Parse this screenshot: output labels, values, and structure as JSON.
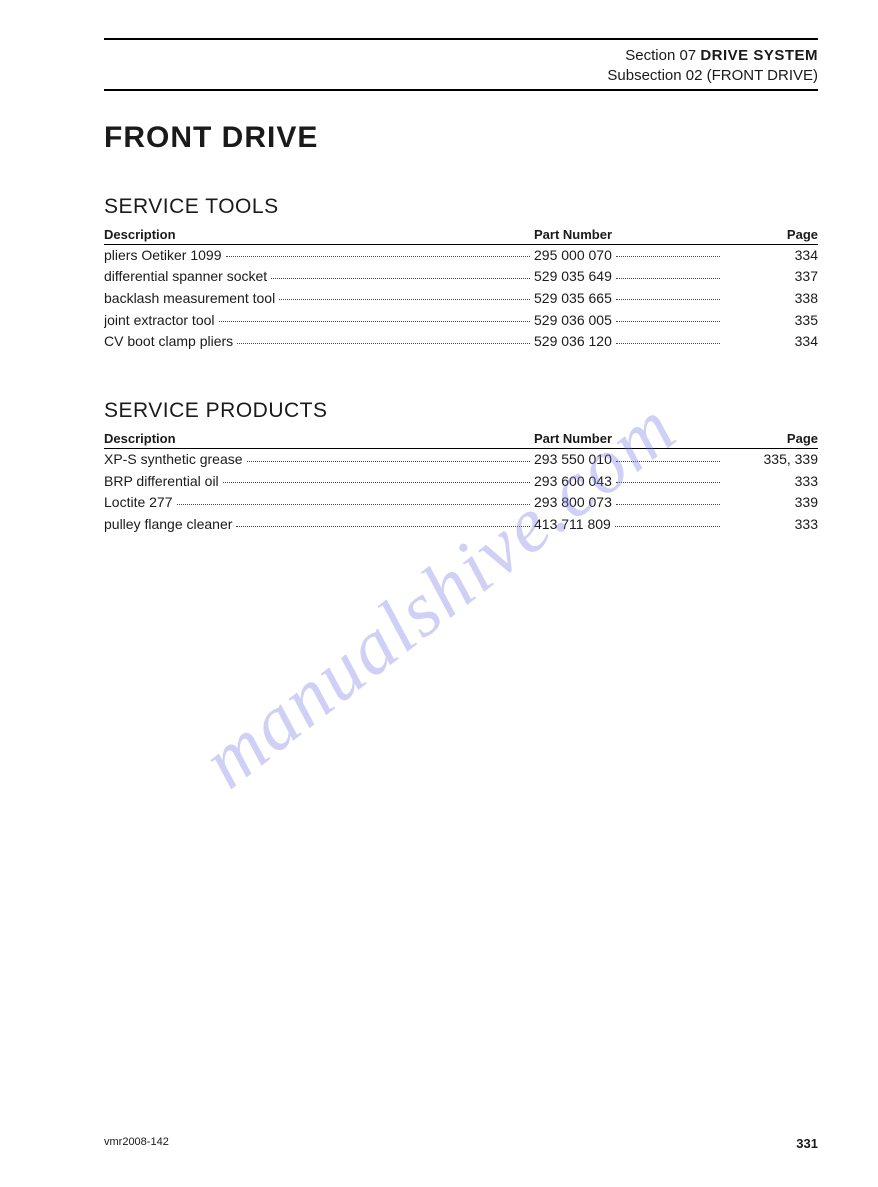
{
  "header": {
    "section_label": "Section 07",
    "section_title": "DRIVE SYSTEM",
    "subsection": "Subsection 02 (FRONT DRIVE)"
  },
  "title": "FRONT DRIVE",
  "tools": {
    "heading": "SERVICE TOOLS",
    "col_desc": "Description",
    "col_part": "Part Number",
    "col_page": "Page",
    "rows": [
      {
        "desc": "pliers Oetiker 1099",
        "part": "295 000 070",
        "page": "334"
      },
      {
        "desc": "differential spanner socket",
        "part": "529 035 649",
        "page": "337"
      },
      {
        "desc": "backlash measurement tool",
        "part": "529 035 665",
        "page": "338"
      },
      {
        "desc": "joint extractor tool",
        "part": "529 036 005",
        "page": "335"
      },
      {
        "desc": "CV boot clamp pliers",
        "part": "529 036 120",
        "page": "334"
      }
    ]
  },
  "products": {
    "heading": "SERVICE PRODUCTS",
    "col_desc": "Description",
    "col_part": "Part Number",
    "col_page": "Page",
    "rows": [
      {
        "desc": "XP-S synthetic grease",
        "part": "293 550 010",
        "page": "335, 339"
      },
      {
        "desc": "BRP differential oil",
        "part": "293 600 043",
        "page": "333"
      },
      {
        "desc": "Loctite 277",
        "part": "293 800 073",
        "page": "339"
      },
      {
        "desc": "pulley flange cleaner",
        "part": "413 711 809",
        "page": "333"
      }
    ]
  },
  "footer": {
    "code": "vmr2008-142",
    "page": "331"
  },
  "watermark": "manualshive.com"
}
